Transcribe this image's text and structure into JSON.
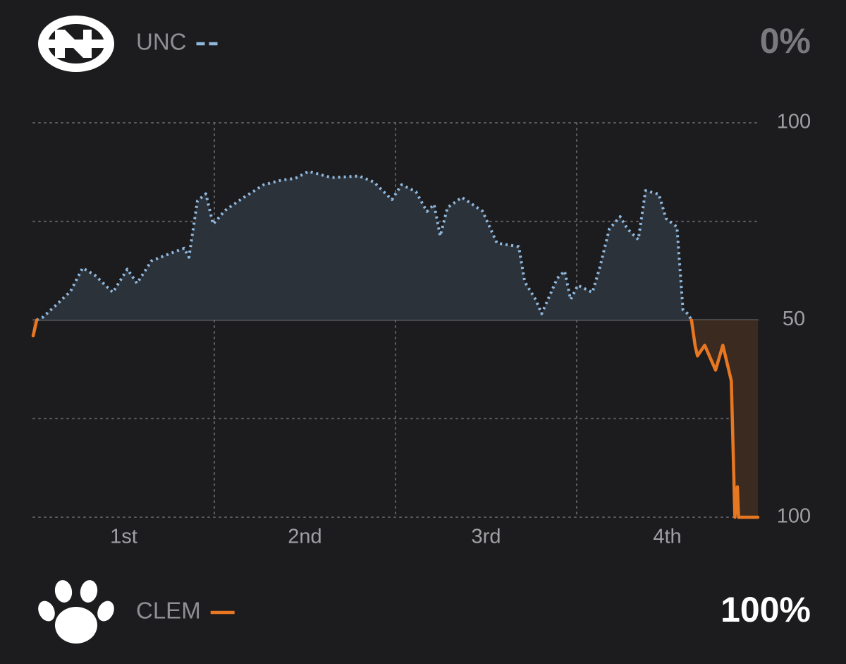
{
  "chart_data": {
    "type": "line",
    "categories": [
      "1st",
      "2nd",
      "3rd",
      "4th"
    ],
    "xlim": [
      0,
      60
    ],
    "xticks": [
      {
        "value": 15,
        "label": null
      },
      {
        "value": 30,
        "label": null
      },
      {
        "value": 45,
        "label": null
      }
    ],
    "ylim": [
      0,
      100
    ],
    "yticks": [
      100,
      {
        "value": 75,
        "label": null
      },
      50,
      {
        "value": 25,
        "label": null
      }
    ],
    "y2lim": [
      100,
      0
    ],
    "y2ticks": [
      100
    ],
    "grid": true,
    "x": [
      0,
      0.3,
      0.8,
      1.9,
      3.1,
      4.1,
      5.1,
      6.6,
      7.8,
      8.6,
      9.8,
      11.3,
      12.5,
      12.9,
      13.6,
      14.3,
      14.9,
      15.9,
      17.4,
      19.1,
      20.6,
      21.7,
      22.8,
      24.7,
      27.0,
      28.2,
      29.7,
      30.5,
      31.7,
      32.6,
      33.2,
      33.7,
      34.3,
      35.5,
      37.2,
      38.4,
      40.2,
      40.7,
      41.6,
      42.1,
      43.4,
      44.0,
      44.5,
      45.1,
      46.3,
      46.9,
      47.7,
      48.6,
      49.2,
      50.1,
      50.7,
      51.8,
      52.4,
      53.3,
      53.8,
      54.2,
      54.5,
      54.8,
      55.0,
      55.6,
      56.5,
      57.1,
      57.8,
      58.1,
      58.3,
      58.4,
      60.0
    ],
    "series": [
      {
        "name": "UNC",
        "color": "#8fb8de",
        "line_style": "dotted",
        "fill": "#2c323a",
        "final_probability": 0,
        "final_label": "0%",
        "values": [
          null,
          50,
          50.7,
          53.8,
          57.3,
          63.2,
          61.4,
          57.0,
          62.9,
          59.3,
          65.0,
          66.8,
          68.2,
          65.9,
          80.2,
          82,
          74.3,
          77.8,
          81,
          84.3,
          85.5,
          85.9,
          87.7,
          86.1,
          86.5,
          85,
          80.5,
          84.3,
          82.5,
          77.5,
          79.3,
          71.3,
          78.5,
          81.1,
          77.6,
          69.5,
          68.6,
          59.7,
          55.2,
          51.6,
          60.6,
          62.4,
          55.2,
          58.8,
          57.0,
          63.2,
          73.1,
          76.2,
          73.1,
          70.4,
          82.8,
          81.9,
          75.7,
          73.6,
          52.5,
          51.6,
          50,
          null,
          null,
          null,
          null,
          null,
          null,
          null,
          null,
          null,
          null
        ]
      },
      {
        "name": "CLEM",
        "color": "#e87722",
        "line_style": "solid",
        "fill": "#3b2a1f",
        "axis": "y2",
        "final_probability": 100,
        "final_label": "100%",
        "values": [
          54,
          50,
          null,
          null,
          null,
          null,
          null,
          null,
          null,
          null,
          null,
          null,
          null,
          null,
          null,
          null,
          null,
          null,
          null,
          null,
          null,
          null,
          null,
          null,
          null,
          null,
          null,
          null,
          null,
          null,
          null,
          null,
          null,
          null,
          null,
          null,
          null,
          null,
          null,
          null,
          null,
          null,
          null,
          null,
          null,
          null,
          null,
          null,
          null,
          null,
          null,
          null,
          null,
          null,
          null,
          null,
          50,
          56.4,
          59.1,
          56.4,
          62.7,
          56.4,
          65.4,
          100,
          92.3,
          100,
          100
        ]
      }
    ]
  }
}
